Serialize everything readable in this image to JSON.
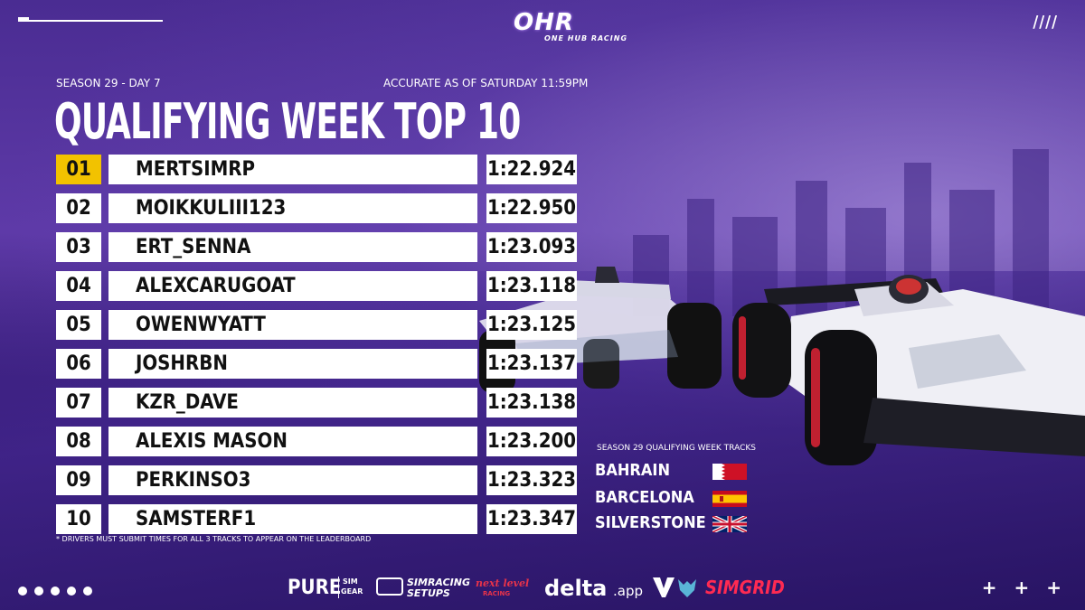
{
  "brand": {
    "logo_mark": "OHR",
    "logo_sub": "ONE HUB RACING"
  },
  "decor": {
    "slashes": "////",
    "plus": "+ + +",
    "dot_count": 5
  },
  "header": {
    "season_label": "SEASON 29 - DAY 7",
    "accuracy_label": "ACCURATE AS OF SATURDAY 11:59PM",
    "title": "QUALIFYING WEEK TOP 10"
  },
  "leaderboard": [
    {
      "pos": "01",
      "name": "MERTSIMRP",
      "time": "1:22.924"
    },
    {
      "pos": "02",
      "name": "MOIKKULIII123",
      "time": "1:22.950"
    },
    {
      "pos": "03",
      "name": "ERT_SENNA",
      "time": "1:23.093"
    },
    {
      "pos": "04",
      "name": "ALEXCARUGOAT",
      "time": "1:23.118"
    },
    {
      "pos": "05",
      "name": "OWENWYATT",
      "time": "1:23.125"
    },
    {
      "pos": "06",
      "name": "JOSHRBN",
      "time": "1:23.137"
    },
    {
      "pos": "07",
      "name": "KZR_DAVE",
      "time": "1:23.138"
    },
    {
      "pos": "08",
      "name": "ALEXIS MASON",
      "time": "1:23.200"
    },
    {
      "pos": "09",
      "name": "PERKINSO3",
      "time": "1:23.323"
    },
    {
      "pos": "10",
      "name": "SAMSTERF1",
      "time": "1:23.347"
    }
  ],
  "note": "* DRIVERS MUST SUBMIT TIMES FOR ALL 3 TRACKS TO APPEAR ON THE LEADERBOARD",
  "tracks": {
    "title": "SEASON 29 QUALIFYING WEEK TRACKS",
    "items": [
      {
        "name": "BAHRAIN",
        "flag": "bahrain-flag-icon"
      },
      {
        "name": "BARCELONA",
        "flag": "spain-flag-icon"
      },
      {
        "name": "SILVERSTONE",
        "flag": "uk-flag-icon"
      }
    ]
  },
  "sponsors": {
    "pure": "PURE",
    "pure_sub1": "SIM",
    "pure_sub2": "GEAR",
    "simracing1": "SIMRACING",
    "simracing2": "SETUPS",
    "nextlevel1": "next level",
    "nextlevel2": "RACING",
    "delta": "delta",
    "delta_suffix": ".app",
    "simgrid": "SIMGRID"
  },
  "colors": {
    "highlight": "#f2c200",
    "background": "#4a2a8e"
  }
}
